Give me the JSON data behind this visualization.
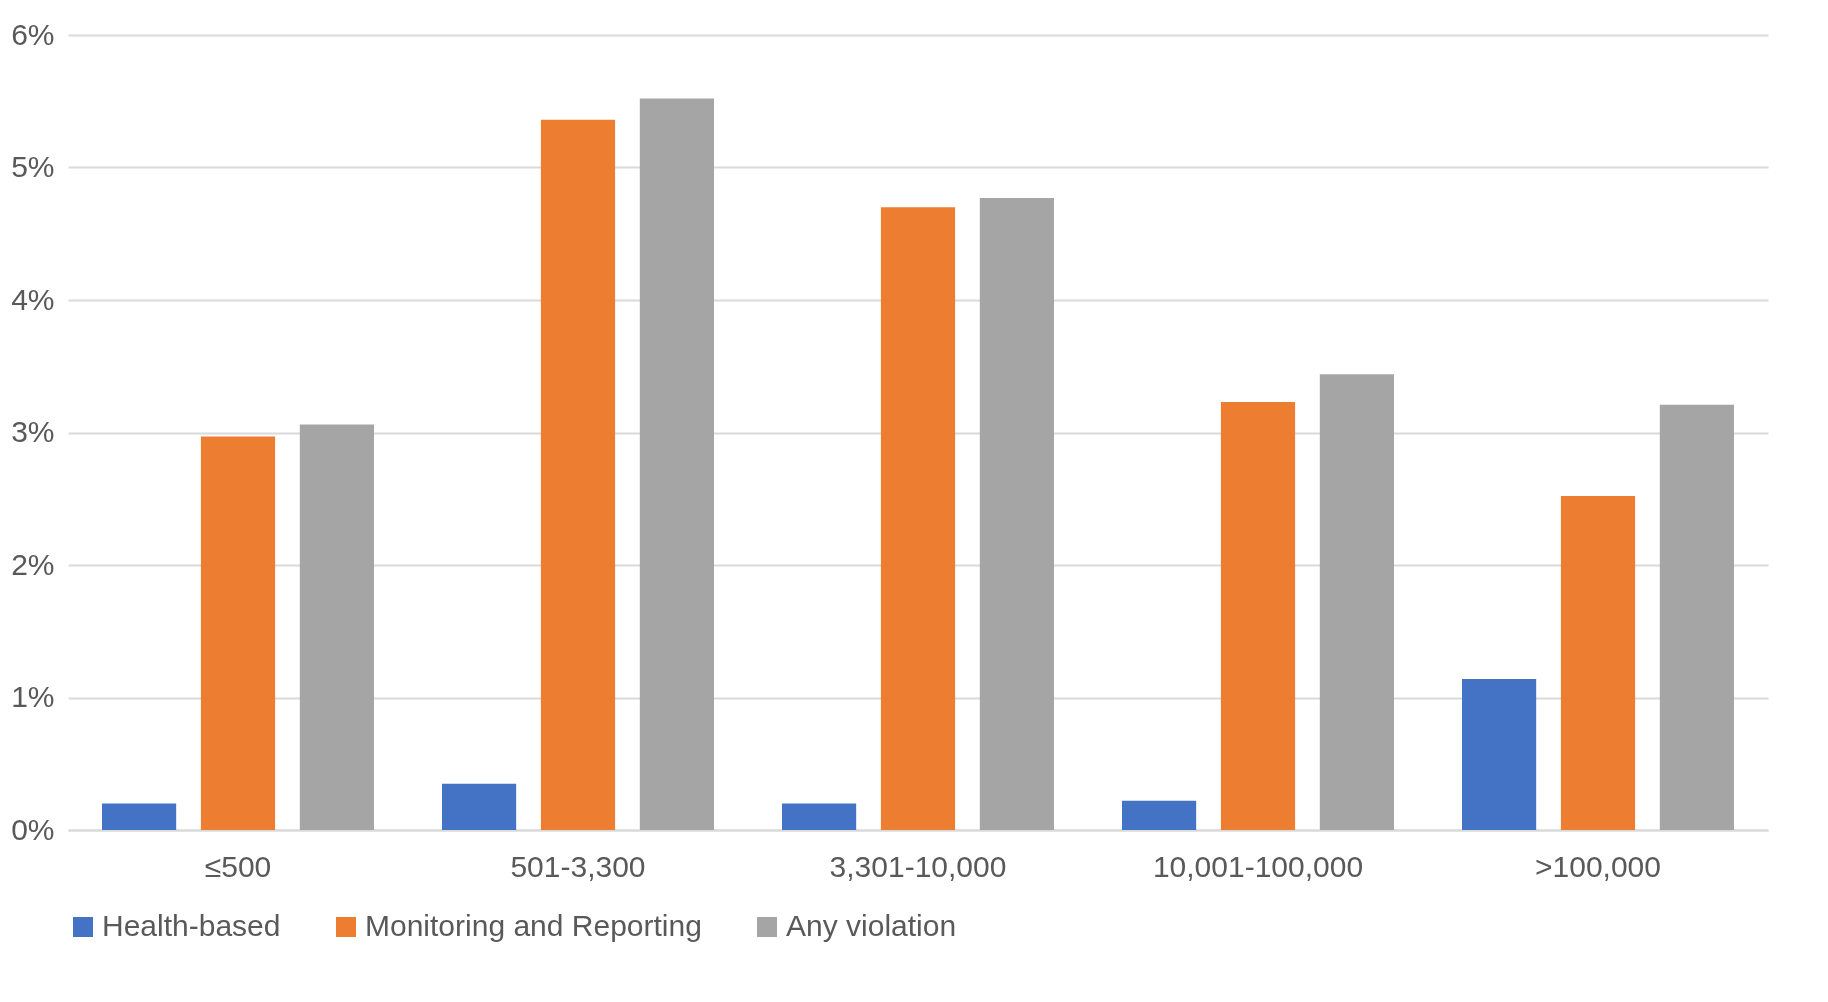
{
  "chart_data": {
    "type": "bar",
    "categories": [
      "≤500",
      "501-3,300",
      "3,301-10,000",
      "10,001-100,000",
      ">100,000"
    ],
    "series": [
      {
        "name": "Health-based",
        "color": "#4472c4",
        "values": [
          0.2,
          0.35,
          0.2,
          0.22,
          1.14
        ]
      },
      {
        "name": "Monitoring and Reporting",
        "color": "#ed7d31",
        "values": [
          2.97,
          5.36,
          4.7,
          3.23,
          2.52
        ]
      },
      {
        "name": "Any violation",
        "color": "#a5a5a5",
        "values": [
          3.06,
          5.52,
          4.77,
          3.44,
          3.21
        ]
      }
    ],
    "ylim": [
      0,
      6
    ],
    "yticks": [
      {
        "value": 0,
        "label": "0%"
      },
      {
        "value": 1,
        "label": "1%"
      },
      {
        "value": 2,
        "label": "2%"
      },
      {
        "value": 3,
        "label": "3%"
      },
      {
        "value": 4,
        "label": "4%"
      },
      {
        "value": 5,
        "label": "5%"
      },
      {
        "value": 6,
        "label": "6%"
      }
    ],
    "grid": true,
    "legend": "bottom"
  }
}
